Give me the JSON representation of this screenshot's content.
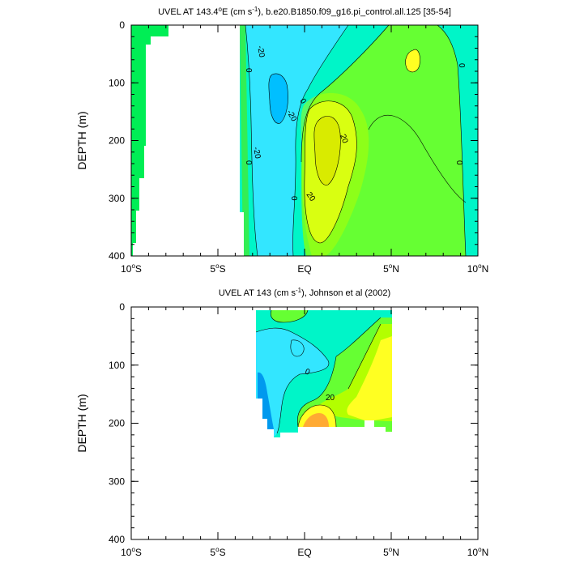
{
  "chart_data": [
    {
      "type": "contour",
      "title_prefix": "UVEL AT 143.4",
      "title_deg": "o",
      "title_mid": "E (cm s",
      "title_exp": "-1",
      "title_suffix": "), b.e20.B1850.f09_g16.pi_control.all.125 [35-54]",
      "ylabel": "DEPTH (m)",
      "xlabel": "",
      "xlim": [
        -10,
        10
      ],
      "ylim": [
        400,
        0
      ],
      "x_ticks": [
        -10,
        -5,
        0,
        5,
        10
      ],
      "x_tick_labels": [
        "10",
        "5",
        "EQ",
        "5",
        "10"
      ],
      "x_tick_suffix": [
        "S",
        "S",
        "",
        "N",
        "N"
      ],
      "y_ticks": [
        0,
        100,
        200,
        300,
        400
      ],
      "y_tick_labels": [
        "0",
        "100",
        "200",
        "300",
        "400"
      ],
      "contour_labels": [
        "-20",
        "0",
        "-20",
        "-20",
        "0",
        "0",
        "20",
        "20",
        "0",
        "0",
        "0"
      ],
      "colors": {
        "strong_neg": "#00bfff",
        "neg": "#33e6ff",
        "weak_neg": "#00f5c8",
        "weak_pos": "#66ff33",
        "zero_band": "#33ee55",
        "pos": "#b3ff00",
        "pos_high": "#ffff22",
        "pos_core": "#ffd700",
        "land": "#ffffff"
      }
    },
    {
      "type": "contour",
      "title_prefix": "UVEL AT 143 (cm s",
      "title_exp": "-1",
      "title_suffix": "), Johnson et al (2002)",
      "ylabel": "DEPTH (m)",
      "xlabel": "",
      "xlim": [
        -10,
        10
      ],
      "ylim": [
        400,
        0
      ],
      "x_ticks": [
        -10,
        -5,
        0,
        5,
        10
      ],
      "x_tick_labels": [
        "10",
        "5",
        "EQ",
        "5",
        "10"
      ],
      "x_tick_suffix": [
        "S",
        "S",
        "",
        "N",
        "N"
      ],
      "y_ticks": [
        0,
        100,
        200,
        300,
        400
      ],
      "y_tick_labels": [
        "0",
        "100",
        "200",
        "300",
        "400"
      ],
      "contour_labels": [
        "0",
        "20"
      ],
      "colors": {
        "strong_neg": "#0099ee",
        "neg": "#33e6ff",
        "weak_neg": "#00f5c8",
        "weak_pos": "#66ff33",
        "zero_band": "#33ee55",
        "pos": "#b3ff00",
        "pos_high": "#ffff22",
        "pos_core": "#ffaa33"
      }
    }
  ]
}
